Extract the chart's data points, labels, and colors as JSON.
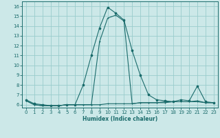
{
  "xlabel": "Humidex (Indice chaleur)",
  "ylabel": "",
  "background_color": "#cce8e8",
  "grid_color": "#99cccc",
  "line_color": "#1a6b6b",
  "xlim": [
    -0.5,
    23.5
  ],
  "ylim": [
    5.7,
    16.5
  ],
  "yticks": [
    6,
    7,
    8,
    9,
    10,
    11,
    12,
    13,
    14,
    15,
    16
  ],
  "xticks": [
    0,
    1,
    2,
    3,
    4,
    5,
    6,
    7,
    8,
    9,
    10,
    11,
    12,
    13,
    14,
    15,
    16,
    17,
    18,
    19,
    20,
    21,
    22,
    23
  ],
  "series1_x": [
    0,
    1,
    2,
    3,
    4,
    5,
    6,
    7,
    8,
    9,
    10,
    11,
    12,
    13,
    14,
    15,
    16,
    17,
    18,
    19,
    20,
    21,
    22,
    23
  ],
  "series1_y": [
    6.5,
    6.1,
    6.0,
    5.9,
    5.9,
    6.0,
    6.0,
    8.0,
    11.0,
    13.8,
    15.9,
    15.3,
    14.6,
    11.5,
    9.0,
    7.0,
    6.5,
    6.4,
    6.3,
    6.5,
    6.4,
    7.9,
    6.3,
    6.2
  ],
  "series2_x": [
    0,
    1,
    2,
    3,
    4,
    5,
    6,
    7,
    8,
    9,
    10,
    11,
    12,
    13,
    14,
    15,
    16,
    17,
    18,
    19,
    20,
    21,
    22,
    23
  ],
  "series2_y": [
    6.4,
    6.0,
    5.9,
    5.9,
    5.9,
    6.0,
    6.0,
    6.0,
    6.0,
    12.4,
    14.8,
    15.1,
    14.5,
    6.1,
    6.2,
    6.2,
    6.2,
    6.3,
    6.3,
    6.3,
    6.3,
    6.4,
    6.2,
    6.2
  ],
  "series3_x": [
    0,
    1,
    2,
    3,
    4,
    5,
    6,
    7,
    8,
    9,
    10,
    11,
    12,
    13,
    14,
    15,
    16,
    17,
    18,
    19,
    20,
    21,
    22,
    23
  ],
  "series3_y": [
    6.4,
    6.0,
    5.9,
    5.9,
    5.9,
    6.0,
    6.0,
    6.0,
    6.0,
    6.0,
    6.1,
    6.1,
    6.1,
    6.1,
    6.2,
    6.2,
    6.2,
    6.2,
    6.3,
    6.3,
    6.3,
    6.3,
    6.2,
    6.2
  ]
}
